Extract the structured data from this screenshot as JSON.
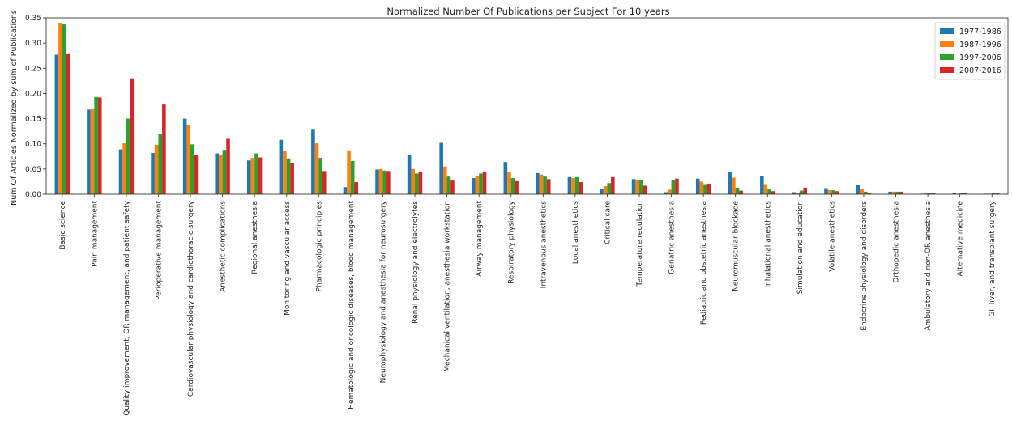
{
  "chart_data": {
    "type": "bar",
    "title": "Normalized Number Of Publications per Subject For 10 years",
    "xlabel": "",
    "ylabel": "Num Of Articles Normalized by sum of Publications",
    "ylim": [
      0,
      0.35
    ],
    "yticks": [
      "0.00",
      "0.05",
      "0.10",
      "0.15",
      "0.20",
      "0.25",
      "0.30",
      "0.35"
    ],
    "legend_position": "top-right",
    "grid": false,
    "categories": [
      "Basic science",
      "Pain management",
      "Quality improvement, OR management, and patient safety",
      "Perioperative management",
      "Cardiovascular physiology and cardiothoracic surgery",
      "Anesthetic complications",
      "Regional anesthesia",
      "Monitoring and vascular access",
      "Pharmacologic principles",
      "Hematologic and oncologic diseases, blood management",
      "Neurophysiology and anesthesia for neurosurgery",
      "Renal physiology and electrolytes",
      "Mechanical ventilation, anesthesia workstation",
      "Airway management",
      "Respiratory physiology",
      "Intravenous anesthetics",
      "Local anesthetics",
      "Critical care",
      "Temperature regulation",
      "Geriatric anesthesia",
      "Pediatric and obstetric anesthesia",
      "Neuromuscular blockade",
      "Inhalational anesthetics",
      "Simulation and education",
      "Volatile anesthetics",
      "Endocrine physiology and disorders",
      "Orthopedic anesthesia",
      "Ambulatory and non-OR anesthesia",
      "Alternative medicine",
      "GI, liver, and transplant surgery"
    ],
    "series": [
      {
        "name": "1977-1986",
        "color": "#1f77b4",
        "values": [
          0.277,
          0.168,
          0.089,
          0.082,
          0.15,
          0.081,
          0.067,
          0.108,
          0.128,
          0.014,
          0.049,
          0.078,
          0.102,
          0.032,
          0.064,
          0.042,
          0.034,
          0.01,
          0.03,
          0.004,
          0.031,
          0.044,
          0.036,
          0.004,
          0.012,
          0.019,
          0.005,
          0.001,
          0.002,
          0.001
        ]
      },
      {
        "name": "1987-1996",
        "color": "#ff7f0e",
        "values": [
          0.339,
          0.169,
          0.101,
          0.098,
          0.137,
          0.078,
          0.072,
          0.085,
          0.101,
          0.087,
          0.05,
          0.05,
          0.055,
          0.036,
          0.045,
          0.039,
          0.032,
          0.016,
          0.028,
          0.009,
          0.025,
          0.033,
          0.02,
          0.003,
          0.008,
          0.01,
          0.005,
          0.002,
          0.001,
          0.001
        ]
      },
      {
        "name": "1997-2006",
        "color": "#2ca02c",
        "values": [
          0.337,
          0.193,
          0.15,
          0.12,
          0.099,
          0.088,
          0.081,
          0.071,
          0.072,
          0.066,
          0.047,
          0.041,
          0.035,
          0.041,
          0.032,
          0.035,
          0.034,
          0.022,
          0.028,
          0.028,
          0.02,
          0.013,
          0.011,
          0.007,
          0.008,
          0.005,
          0.005,
          0.002,
          0.002,
          0.002
        ]
      },
      {
        "name": "2007-2016",
        "color": "#d62728",
        "values": [
          0.278,
          0.192,
          0.23,
          0.178,
          0.077,
          0.11,
          0.073,
          0.062,
          0.046,
          0.024,
          0.046,
          0.044,
          0.027,
          0.045,
          0.026,
          0.03,
          0.024,
          0.034,
          0.017,
          0.031,
          0.021,
          0.007,
          0.006,
          0.013,
          0.006,
          0.003,
          0.005,
          0.003,
          0.003,
          0.002
        ]
      }
    ]
  }
}
